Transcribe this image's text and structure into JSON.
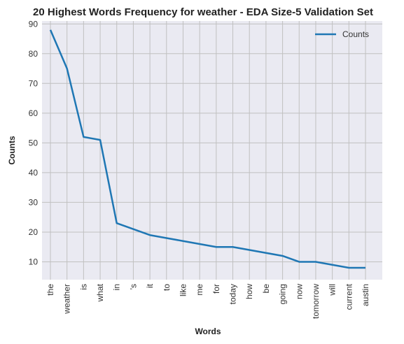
{
  "chart_data": {
    "type": "line",
    "title": "20 Highest Words Frequency for weather - EDA Size-5 Validation Set",
    "xlabel": "Words",
    "ylabel": "Counts",
    "categories": [
      "the",
      "weather",
      "is",
      "what",
      "in",
      "'s",
      "it",
      "to",
      "like",
      "me",
      "for",
      "today",
      "how",
      "be",
      "going",
      "now",
      "tomorrow",
      "will",
      "current",
      "austin"
    ],
    "series": [
      {
        "name": "Counts",
        "values": [
          88,
          75,
          52,
          51,
          23,
          21,
          19,
          18,
          17,
          16,
          15,
          15,
          14,
          13,
          12,
          10,
          10,
          9,
          8,
          8
        ]
      }
    ],
    "ylim": [
      4,
      91
    ],
    "yticks": [
      10,
      20,
      30,
      40,
      50,
      60,
      70,
      80,
      90
    ],
    "grid": true,
    "legend_position": "top-right",
    "colors": {
      "line": "#1f77b4",
      "plot_bg": "#eaeaf2",
      "grid": "#c0c0c0"
    }
  }
}
